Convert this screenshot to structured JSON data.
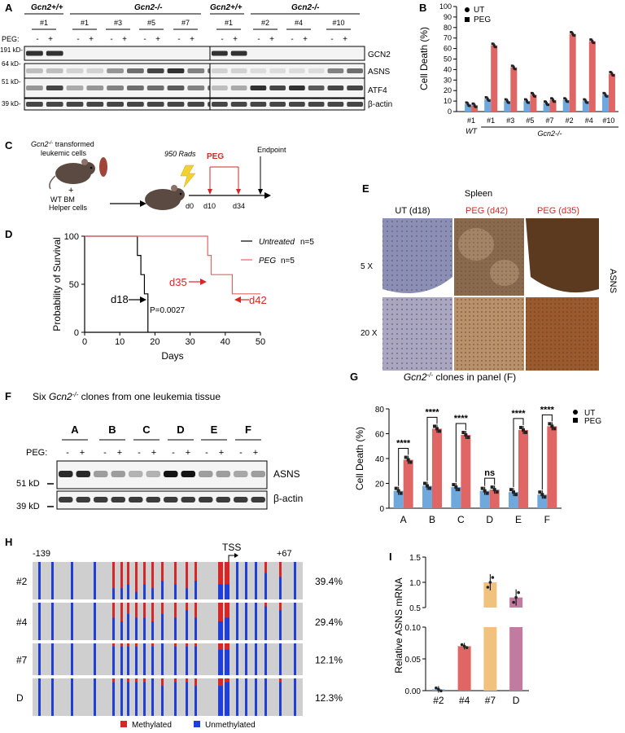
{
  "panel_letters": [
    "A",
    "B",
    "C",
    "D",
    "E",
    "F",
    "G",
    "H",
    "I"
  ],
  "panel_a": {
    "group_labels": [
      "Gcn2+/+",
      "Gcn2-/-",
      "Gcn2+/+",
      "Gcn2-/-"
    ],
    "clones_left": [
      "#1",
      "#1",
      "#3",
      "#5",
      "#7"
    ],
    "clones_right": [
      "#1",
      "#2",
      "#4",
      "#10"
    ],
    "peg_label": "PEG:",
    "signs": [
      "-",
      "+"
    ],
    "mw_labels": [
      "191 kD-",
      "64 kD-",
      "51 kD-",
      "39 kD-"
    ],
    "protein_labels": [
      "GCN2",
      "ASNS",
      "ATF4",
      "β-actin"
    ]
  },
  "panel_c": {
    "cells_label": "Gcn2-/- transformed leukemic cells",
    "plus": "+",
    "helper_label": "WT BM Helper cells",
    "rads_label": "950 Rads",
    "peg_label": "PEG",
    "endpoint_label": "Endpoint",
    "timepoints": [
      "d0",
      "d10",
      "d34"
    ]
  },
  "panel_e": {
    "title": "Spleen",
    "col_labels": [
      "UT (d18)",
      "PEG (d42)",
      "PEG (d35)"
    ],
    "row_labels": [
      "5 X",
      "20 X"
    ],
    "side_label": "ASNS"
  },
  "panel_f": {
    "title": "Six Gcn2-/- clones from one leukemia tissue",
    "clones": [
      "A",
      "B",
      "C",
      "D",
      "E",
      "F"
    ],
    "peg_label": "PEG:",
    "signs": [
      "-",
      "+"
    ],
    "mw_labels": [
      "51 kD",
      "39 kD"
    ],
    "protein_labels": [
      "ASNS",
      "β-actin"
    ]
  },
  "panel_h": {
    "left_coord": "-139",
    "right_coord": "+67",
    "tss_label": "TSS",
    "rows": [
      "#2",
      "#4",
      "#7",
      "D"
    ],
    "percents": [
      "39.4%",
      "29.4%",
      "12.1%",
      "12.3%"
    ],
    "legend": [
      "Methylated",
      "Unmethylated"
    ]
  },
  "colors": {
    "ut": "#6fa8dc",
    "peg": "#e06666",
    "sample_2": "#6fa8dc",
    "sample_4": "#e06666",
    "sample_7": "#f1c27d",
    "sample_D": "#c27ba0",
    "methylated": "#d62728",
    "unmethylated": "#1f3fd6",
    "dna_bg": "#cfcfcf"
  },
  "chart_data": [
    {
      "id": "B",
      "type": "bar",
      "ylabel": "Cell Death (%)",
      "ylim": [
        0,
        100
      ],
      "yticks": [
        0,
        10,
        20,
        30,
        40,
        50,
        60,
        70,
        80,
        90,
        100
      ],
      "legend": [
        "UT",
        "PEG"
      ],
      "legend_position": "top-left",
      "categories": [
        "#1",
        "#1",
        "#3",
        "#5",
        "#7",
        "#2",
        "#4",
        "#10"
      ],
      "group_labels": [
        "WT",
        "Gcn2-/-"
      ],
      "series": [
        {
          "name": "UT",
          "values": [
            7,
            12,
            10,
            10,
            8,
            11,
            10,
            16
          ]
        },
        {
          "name": "PEG",
          "values": [
            6,
            63,
            42,
            16,
            11,
            74,
            67,
            36
          ]
        }
      ]
    },
    {
      "id": "D",
      "type": "line",
      "xlabel": "Days",
      "ylabel": "Probability of Survival",
      "xlim": [
        0,
        50
      ],
      "ylim": [
        0,
        100
      ],
      "xticks": [
        0,
        10,
        20,
        30,
        40,
        50
      ],
      "yticks": [
        0,
        50,
        100
      ],
      "legend_position": "top-right",
      "series": [
        {
          "name": "Untreated",
          "n_label": "n=5",
          "x": [
            0,
            15,
            15,
            16,
            16,
            17,
            17,
            18,
            18
          ],
          "y": [
            100,
            100,
            80,
            80,
            60,
            60,
            40,
            40,
            0
          ]
        },
        {
          "name": "PEG",
          "n_label": "n=5",
          "x": [
            0,
            35,
            35,
            36,
            36,
            42,
            42,
            50
          ],
          "y": [
            100,
            100,
            80,
            80,
            60,
            60,
            40,
            40
          ]
        }
      ],
      "annotations": [
        "d18",
        "d35",
        "d42",
        "P=0.0027"
      ]
    },
    {
      "id": "G",
      "type": "bar",
      "title": "Gcn2-/- clones in panel (F)",
      "ylabel": "Cell Death (%)",
      "ylim": [
        0,
        80
      ],
      "yticks": [
        0,
        20,
        40,
        60,
        80
      ],
      "legend": [
        "UT",
        "PEG"
      ],
      "legend_position": "top-right",
      "categories": [
        "A",
        "B",
        "C",
        "D",
        "E",
        "F"
      ],
      "series": [
        {
          "name": "UT",
          "values": [
            14,
            18,
            17,
            14,
            13,
            11
          ]
        },
        {
          "name": "PEG",
          "values": [
            39,
            64,
            59,
            15,
            63,
            66
          ]
        }
      ],
      "significance": [
        "****",
        "****",
        "****",
        "ns",
        "****",
        "****"
      ]
    },
    {
      "id": "I",
      "type": "bar",
      "ylabel": "Relative ASNS mRNA",
      "categories": [
        "#2",
        "#4",
        "#7",
        "D"
      ],
      "values": [
        0.002,
        0.07,
        1.0,
        0.7
      ],
      "axis_break": true,
      "upper_yticks": [
        0.5,
        1.0,
        1.5
      ],
      "lower_yticks": [
        0.0,
        0.05,
        0.1
      ]
    }
  ]
}
